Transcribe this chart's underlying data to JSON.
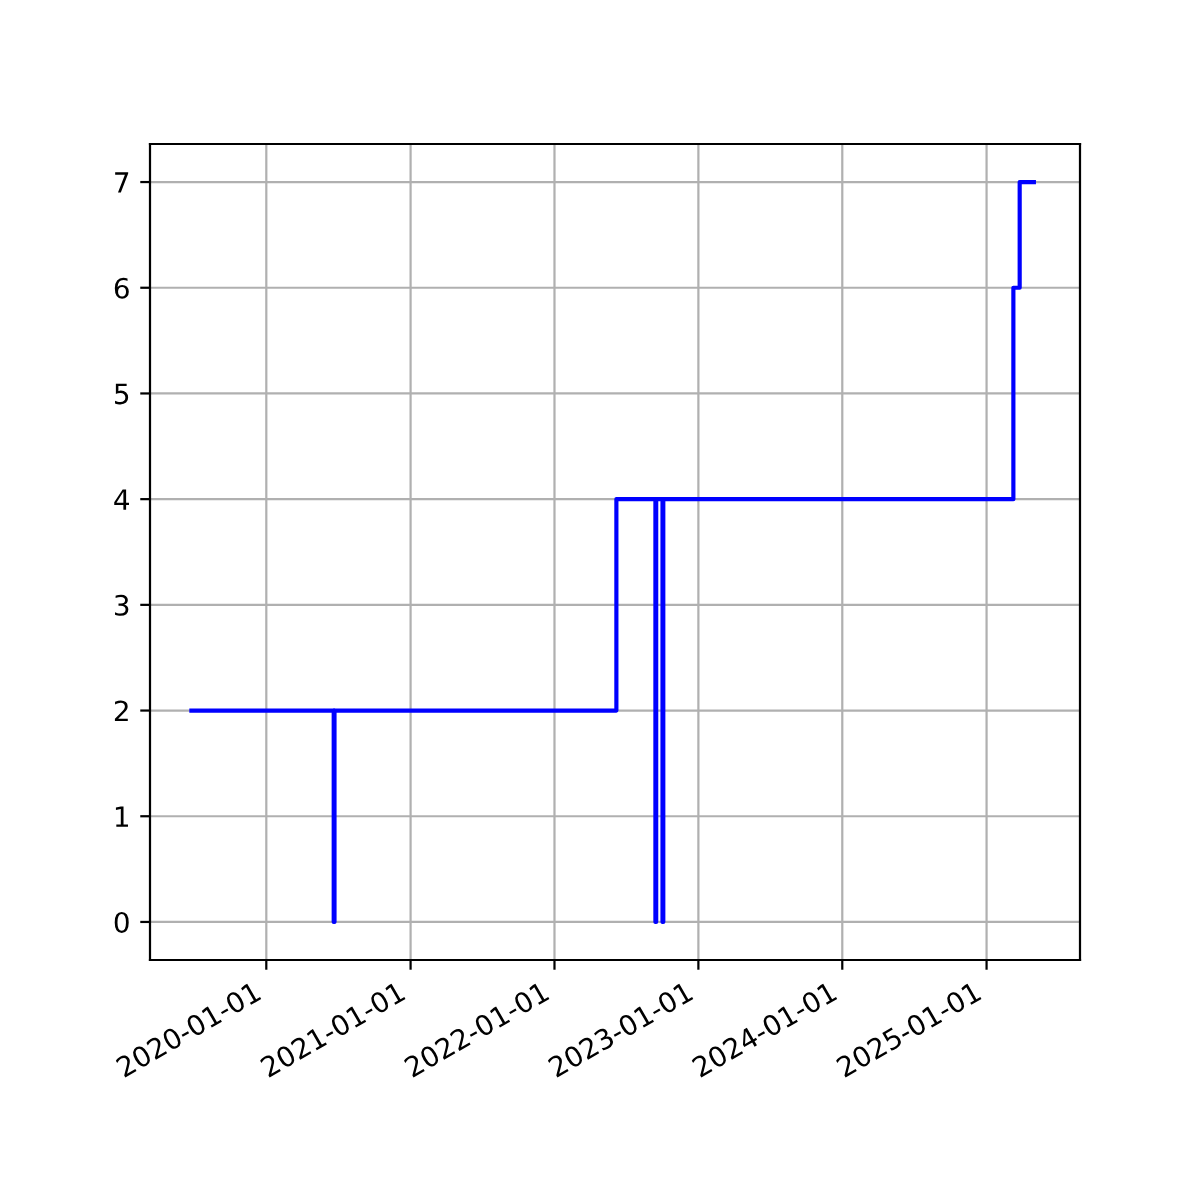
{
  "chart_data": {
    "type": "step",
    "x": [
      "2019-06-25",
      "2020-06-20",
      "2020-06-22",
      "2022-06-07",
      "2022-09-14",
      "2022-09-16",
      "2022-10-02",
      "2022-10-04",
      "2025-03-10",
      "2025-03-26",
      "2025-05-01"
    ],
    "series": [
      {
        "color": "#0000ff",
        "values": [
          2,
          0,
          2,
          4,
          0,
          4,
          0,
          4,
          6,
          7,
          7
        ]
      }
    ],
    "xlim": [
      "2019-03-12",
      "2025-08-26"
    ],
    "xticks": [
      {
        "value": "2020-01-01",
        "label": "2020-01-01"
      },
      {
        "value": "2021-01-01",
        "label": "2021-01-01"
      },
      {
        "value": "2022-01-01",
        "label": "2022-01-01"
      },
      {
        "value": "2023-01-01",
        "label": "2023-01-01"
      },
      {
        "value": "2024-01-01",
        "label": "2024-01-01"
      },
      {
        "value": "2025-01-01",
        "label": "2025-01-01"
      }
    ],
    "ylim": [
      -0.36,
      7.36
    ],
    "yticks": [
      0,
      1,
      2,
      3,
      4,
      5,
      6,
      7
    ],
    "grid": true
  }
}
